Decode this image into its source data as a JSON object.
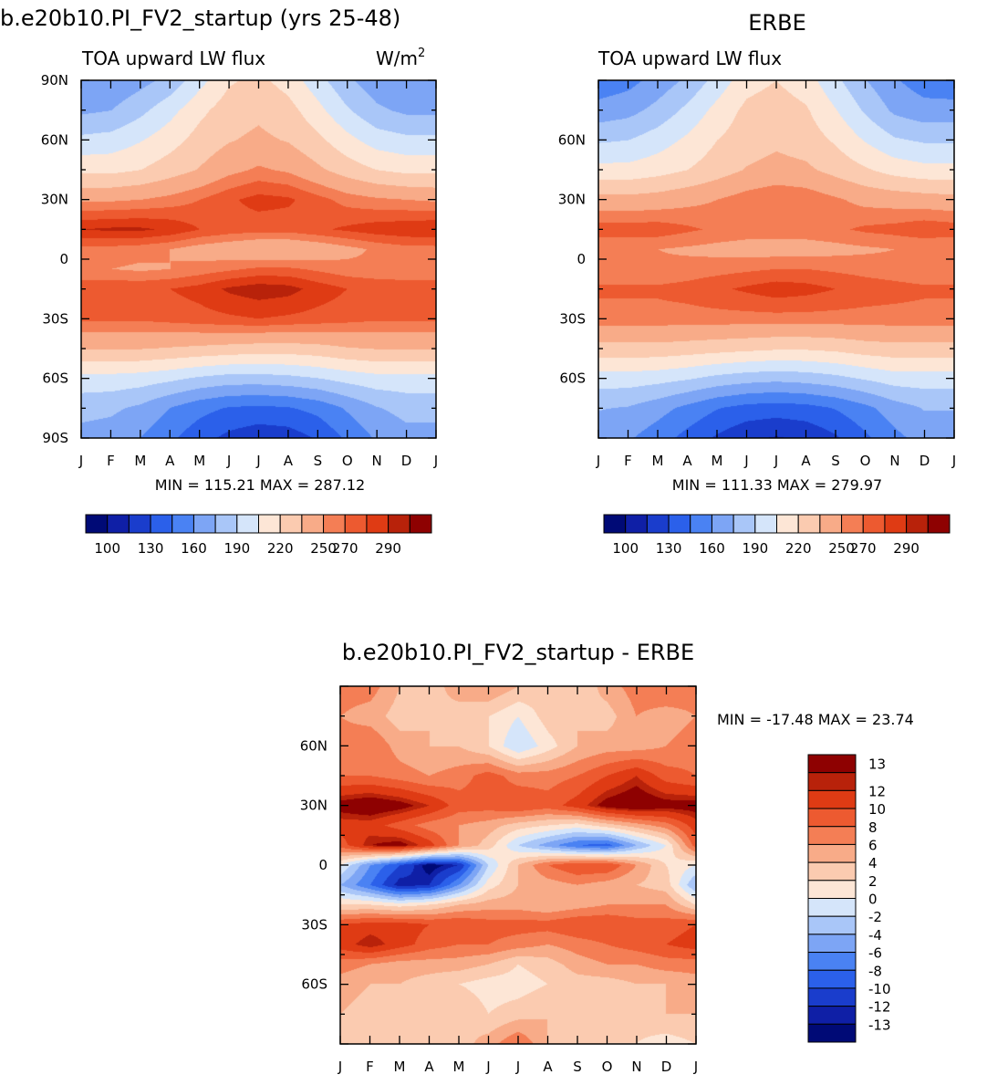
{
  "chart_data": [
    {
      "type": "heatmap",
      "title": "b.e20b10.PI_FV2_startup (yrs 25-48)",
      "left_label": "TOA upward LW flux",
      "right_label": "W/m",
      "units_exponent": "2",
      "x_tick_labels": [
        "J",
        "F",
        "M",
        "A",
        "M",
        "J",
        "J",
        "A",
        "S",
        "O",
        "N",
        "D",
        "J"
      ],
      "y_ticks": [
        90,
        60,
        30,
        0,
        -30,
        -60,
        -90
      ],
      "y_tick_labels": [
        "90N",
        "60N",
        "30N",
        "0",
        "30S",
        "60S",
        "90S"
      ],
      "ylim": [
        -90,
        90
      ],
      "min": 115.21,
      "max": 287.12,
      "min_label": "MIN = 115.21  MAX = 287.12",
      "colorbar_labels": [
        "100",
        "130",
        "160",
        "190",
        "220",
        "250",
        "270",
        "290"
      ],
      "colorbar_colors": [
        "#000a76",
        "#0f1fa6",
        "#1a3dcc",
        "#2b60ea",
        "#4a82f3",
        "#7da5f5",
        "#a9c6f8",
        "#d5e5fa",
        "#fde6d6",
        "#fbcbb0",
        "#f8ab88",
        "#f47e55",
        "#ed5a30",
        "#df3b14",
        "#b8220a",
        "#8e0101"
      ],
      "series": [
        {
          "lat": 90,
          "values": [
            162,
            162,
            170,
            180,
            200,
            218,
            224,
            214,
            196,
            178,
            166,
            160
          ]
        },
        {
          "lat": 75,
          "values": [
            172,
            175,
            186,
            200,
            216,
            228,
            232,
            226,
            210,
            192,
            178,
            172
          ]
        },
        {
          "lat": 60,
          "values": [
            194,
            196,
            204,
            214,
            226,
            234,
            238,
            234,
            224,
            210,
            198,
            194
          ]
        },
        {
          "lat": 45,
          "values": [
            216,
            216,
            220,
            228,
            236,
            246,
            252,
            248,
            238,
            228,
            220,
            216
          ]
        },
        {
          "lat": 30,
          "values": [
            248,
            248,
            250,
            254,
            260,
            268,
            274,
            272,
            264,
            256,
            252,
            250
          ]
        },
        {
          "lat": 15,
          "values": [
            280,
            282,
            282,
            278,
            270,
            266,
            264,
            264,
            268,
            272,
            276,
            278
          ]
        },
        {
          "lat": 5,
          "values": [
            256,
            256,
            254,
            250,
            244,
            240,
            236,
            236,
            240,
            246,
            252,
            256
          ]
        },
        {
          "lat": -5,
          "values": [
            250,
            250,
            248,
            250,
            254,
            258,
            262,
            262,
            258,
            254,
            252,
            250
          ]
        },
        {
          "lat": -15,
          "values": [
            268,
            268,
            268,
            270,
            274,
            282,
            286,
            284,
            276,
            270,
            268,
            268
          ]
        },
        {
          "lat": -30,
          "values": [
            262,
            262,
            262,
            264,
            266,
            268,
            270,
            268,
            266,
            264,
            262,
            262
          ]
        },
        {
          "lat": -45,
          "values": [
            236,
            236,
            236,
            234,
            232,
            230,
            228,
            228,
            230,
            234,
            236,
            236
          ]
        },
        {
          "lat": -60,
          "values": [
            200,
            200,
            198,
            194,
            188,
            184,
            184,
            186,
            190,
            196,
            200,
            200
          ]
        },
        {
          "lat": -75,
          "values": [
            180,
            178,
            172,
            160,
            150,
            144,
            142,
            144,
            150,
            162,
            174,
            180
          ]
        },
        {
          "lat": -90,
          "values": [
            170,
            168,
            160,
            148,
            136,
            126,
            120,
            122,
            132,
            148,
            162,
            170
          ]
        }
      ]
    },
    {
      "type": "heatmap",
      "title": "ERBE",
      "left_label": "TOA upward LW flux",
      "x_tick_labels": [
        "J",
        "F",
        "M",
        "A",
        "M",
        "J",
        "J",
        "A",
        "S",
        "O",
        "N",
        "D",
        "J"
      ],
      "y_ticks": [
        60,
        30,
        0,
        -30,
        -60
      ],
      "y_tick_labels": [
        "60N",
        "30N",
        "0",
        "30S",
        "60S"
      ],
      "ylim": [
        -90,
        90
      ],
      "min": 111.33,
      "max": 279.97,
      "min_label": "MIN = 111.33  MAX = 279.97",
      "colorbar_labels": [
        "100",
        "130",
        "160",
        "190",
        "220",
        "250",
        "270",
        "290"
      ],
      "colorbar_colors": [
        "#000a76",
        "#0f1fa6",
        "#1a3dcc",
        "#2b60ea",
        "#4a82f3",
        "#7da5f5",
        "#a9c6f8",
        "#d5e5fa",
        "#fde6d6",
        "#fbcbb0",
        "#f8ab88",
        "#f47e55",
        "#ed5a30",
        "#df3b14",
        "#b8220a",
        "#8e0101"
      ],
      "series": [
        {
          "lat": 90,
          "values": [
            150,
            155,
            166,
            178,
            196,
            214,
            220,
            212,
            194,
            176,
            162,
            152
          ]
        },
        {
          "lat": 75,
          "values": [
            166,
            170,
            180,
            194,
            210,
            224,
            228,
            222,
            206,
            188,
            172,
            166
          ]
        },
        {
          "lat": 60,
          "values": [
            188,
            190,
            198,
            208,
            220,
            228,
            232,
            228,
            218,
            204,
            192,
            188
          ]
        },
        {
          "lat": 45,
          "values": [
            210,
            210,
            214,
            220,
            228,
            236,
            240,
            238,
            230,
            222,
            214,
            210
          ]
        },
        {
          "lat": 30,
          "values": [
            240,
            240,
            242,
            246,
            250,
            256,
            260,
            258,
            252,
            246,
            244,
            242
          ]
        },
        {
          "lat": 15,
          "values": [
            266,
            266,
            266,
            262,
            258,
            256,
            256,
            256,
            258,
            262,
            264,
            268
          ]
        },
        {
          "lat": 5,
          "values": [
            250,
            250,
            250,
            248,
            246,
            244,
            244,
            244,
            246,
            248,
            250,
            250
          ]
        },
        {
          "lat": -5,
          "values": [
            252,
            252,
            252,
            254,
            256,
            258,
            260,
            260,
            258,
            256,
            254,
            252
          ]
        },
        {
          "lat": -15,
          "values": [
            262,
            262,
            262,
            264,
            268,
            272,
            276,
            274,
            270,
            266,
            264,
            262
          ]
        },
        {
          "lat": -30,
          "values": [
            256,
            256,
            256,
            256,
            256,
            256,
            256,
            256,
            256,
            256,
            256,
            256
          ]
        },
        {
          "lat": -45,
          "values": [
            230,
            230,
            230,
            228,
            226,
            224,
            222,
            222,
            224,
            228,
            230,
            230
          ]
        },
        {
          "lat": -60,
          "values": [
            198,
            198,
            196,
            192,
            186,
            182,
            180,
            182,
            186,
            192,
            198,
            198
          ]
        },
        {
          "lat": -75,
          "values": [
            176,
            174,
            166,
            156,
            146,
            140,
            138,
            140,
            146,
            156,
            168,
            176
          ]
        },
        {
          "lat": -90,
          "values": [
            166,
            162,
            152,
            140,
            128,
            118,
            114,
            118,
            128,
            142,
            156,
            166
          ]
        }
      ]
    },
    {
      "type": "heatmap",
      "title": "b.e20b10.PI_FV2_startup - ERBE",
      "x_tick_labels": [
        "J",
        "F",
        "M",
        "A",
        "M",
        "J",
        "J",
        "A",
        "S",
        "O",
        "N",
        "D",
        "J"
      ],
      "y_ticks": [
        60,
        30,
        0,
        -30,
        -60
      ],
      "y_tick_labels": [
        "60N",
        "30N",
        "0",
        "30S",
        "60S"
      ],
      "ylim": [
        -90,
        90
      ],
      "min": -17.48,
      "max": 23.74,
      "min_label": "MIN = -17.48  MAX =   23.74",
      "colorbar_labels": [
        "13",
        "12",
        "10",
        "8",
        "6",
        "4",
        "2",
        "0",
        "-2",
        "-4",
        "-6",
        "-8",
        "-10",
        "-12",
        "-13"
      ],
      "colorbar_colors": [
        "#8e0101",
        "#b8220a",
        "#df3b14",
        "#ed5a30",
        "#f47e55",
        "#f8ab88",
        "#fbcbb0",
        "#fde6d6",
        "#d5e5fa",
        "#a9c6f8",
        "#7da5f5",
        "#4a82f3",
        "#2b60ea",
        "#1a3dcc",
        "#0f1fa6",
        "#000a76"
      ],
      "series": [
        {
          "lat": 90,
          "values": [
            7,
            7,
            4,
            3,
            5,
            6,
            4,
            3,
            2,
            5,
            7,
            8
          ]
        },
        {
          "lat": 75,
          "values": [
            6,
            5,
            3,
            4,
            3,
            2,
            0,
            3,
            4,
            3,
            6,
            5
          ]
        },
        {
          "lat": 60,
          "values": [
            7,
            8,
            5,
            4,
            4,
            2,
            -2,
            1,
            4,
            5,
            5,
            6
          ]
        },
        {
          "lat": 45,
          "values": [
            8,
            8,
            7,
            6,
            7,
            9,
            7,
            7,
            8,
            10,
            12,
            9
          ]
        },
        {
          "lat": 30,
          "values": [
            14,
            15,
            14,
            12,
            9,
            9,
            10,
            9,
            11,
            14,
            15,
            14
          ]
        },
        {
          "lat": 20,
          "values": [
            11,
            11,
            9,
            7,
            6,
            5,
            3,
            2,
            1,
            3,
            5,
            7
          ]
        },
        {
          "lat": 10,
          "values": [
            9,
            13,
            14,
            11,
            6,
            3,
            -2,
            -5,
            -8,
            -9,
            -4,
            0
          ]
        },
        {
          "lat": 0,
          "values": [
            0,
            -6,
            -10,
            -14,
            -12,
            -2,
            4,
            8,
            10,
            10,
            6,
            2
          ]
        },
        {
          "lat": -10,
          "values": [
            -4,
            -8,
            -13,
            -12,
            -6,
            1,
            4,
            5,
            6,
            5,
            4,
            3
          ]
        },
        {
          "lat": -20,
          "values": [
            2,
            2,
            1,
            2,
            4,
            5,
            5,
            4,
            5,
            6,
            6,
            6
          ]
        },
        {
          "lat": -30,
          "values": [
            10,
            11,
            11,
            10,
            10,
            9,
            9,
            9,
            10,
            10,
            9,
            9
          ]
        },
        {
          "lat": -40,
          "values": [
            11,
            13,
            11,
            9,
            8,
            8,
            7,
            6,
            7,
            8,
            9,
            10
          ]
        },
        {
          "lat": -50,
          "values": [
            7,
            6,
            5,
            5,
            5,
            4,
            2,
            3,
            5,
            6,
            6,
            7
          ]
        },
        {
          "lat": -60,
          "values": [
            5,
            4,
            4,
            3,
            2,
            1,
            1,
            2,
            3,
            3,
            4,
            4
          ]
        },
        {
          "lat": -75,
          "values": [
            4,
            3,
            2,
            3,
            4,
            2,
            3,
            4,
            3,
            2,
            3,
            4
          ]
        },
        {
          "lat": -90,
          "values": [
            2,
            3,
            4,
            4,
            3,
            5,
            8,
            4,
            3,
            2,
            2,
            1
          ]
        }
      ]
    }
  ]
}
